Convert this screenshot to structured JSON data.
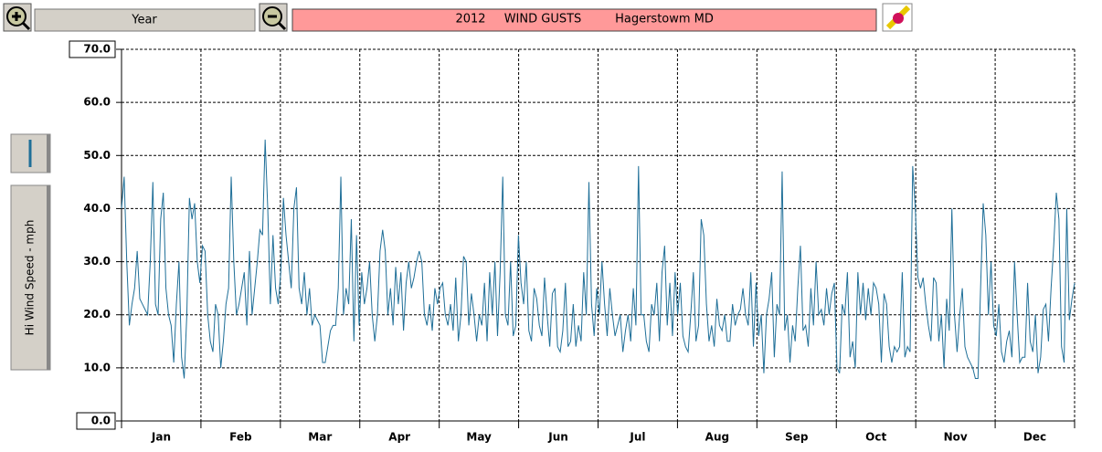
{
  "chart_data": {
    "type": "line",
    "range_button": "Year",
    "year": "2012",
    "title": "WIND GUSTS",
    "location": "Hagerstowm MD",
    "y_label": "Hi Wind Speed - mph",
    "x_labels": [
      "Jan",
      "Feb",
      "Mar",
      "Apr",
      "May",
      "Jun",
      "Jul",
      "Aug",
      "Sep",
      "Oct",
      "Nov",
      "Dec"
    ],
    "ylim": [
      0,
      70
    ],
    "yticks": [
      {
        "value": 0,
        "label": "0.0"
      },
      {
        "value": 10,
        "label": "10.0"
      },
      {
        "value": 20,
        "label": "20.0"
      },
      {
        "value": 30,
        "label": "30.0"
      },
      {
        "value": 40,
        "label": "40.0"
      },
      {
        "value": 50,
        "label": "50.0"
      },
      {
        "value": 60,
        "label": "60.0"
      },
      {
        "value": 70,
        "label": "70.0"
      }
    ],
    "grid": true,
    "color": "#1f6f98",
    "values": [
      40,
      46,
      30,
      18,
      22,
      25,
      32,
      23,
      22,
      21,
      20,
      30,
      45,
      22,
      20,
      38,
      43,
      25,
      20,
      18,
      11,
      22,
      30,
      12,
      8,
      20,
      42,
      38,
      41,
      30,
      26,
      33,
      32,
      20,
      15,
      13,
      22,
      20,
      10,
      15,
      22,
      25,
      46,
      30,
      20,
      22,
      25,
      28,
      18,
      32,
      20,
      25,
      30,
      36,
      35,
      53,
      40,
      22,
      35,
      25,
      22,
      28,
      42,
      35,
      30,
      25,
      40,
      44,
      25,
      22,
      28,
      20,
      25,
      18,
      20,
      19,
      18,
      11,
      11,
      14,
      17,
      18,
      18,
      25,
      46,
      20,
      25,
      22,
      38,
      15,
      35,
      18,
      28,
      22,
      25,
      30,
      20,
      15,
      20,
      32,
      36,
      32,
      20,
      25,
      18,
      29,
      22,
      28,
      17,
      26,
      30,
      25,
      27,
      30,
      32,
      30,
      20,
      18,
      22,
      17,
      25,
      22,
      25,
      26,
      20,
      18,
      22,
      17,
      27,
      15,
      20,
      31,
      30,
      18,
      24,
      20,
      15,
      20,
      18,
      26,
      15,
      28,
      20,
      30,
      16,
      28,
      46,
      20,
      18,
      30,
      16,
      18,
      35,
      26,
      22,
      30,
      17,
      15,
      25,
      23,
      18,
      16,
      27,
      20,
      14,
      24,
      25,
      14,
      13,
      17,
      26,
      14,
      15,
      22,
      14,
      18,
      15,
      28,
      20,
      45,
      22,
      16,
      25,
      20,
      30,
      22,
      16,
      25,
      20,
      16,
      18,
      20,
      13,
      17,
      20,
      15,
      25,
      18,
      48,
      20,
      20,
      15,
      13,
      22,
      20,
      26,
      15,
      28,
      33,
      18,
      26,
      16,
      28,
      20,
      26,
      16,
      14,
      13,
      20,
      28,
      15,
      18,
      38,
      35,
      22,
      15,
      18,
      14,
      23,
      18,
      17,
      20,
      15,
      15,
      22,
      18,
      20,
      21,
      25,
      20,
      18,
      28,
      14,
      26,
      16,
      20,
      9,
      20,
      23,
      28,
      12,
      22,
      20,
      47,
      17,
      20,
      11,
      18,
      15,
      25,
      33,
      17,
      18,
      14,
      25,
      18,
      30,
      20,
      21,
      18,
      25,
      20,
      24,
      26,
      10,
      9,
      22,
      20,
      28,
      12,
      15,
      10,
      28,
      20,
      26,
      19,
      25,
      20,
      26,
      25,
      22,
      11,
      24,
      22,
      14,
      11,
      14,
      13,
      14,
      28,
      12,
      14,
      13,
      48,
      40,
      27,
      25,
      27,
      22,
      18,
      15,
      27,
      26,
      15,
      20,
      10,
      23,
      17,
      40,
      20,
      13,
      20,
      25,
      14,
      12,
      11,
      10,
      8,
      8,
      25,
      41,
      35,
      20,
      30,
      18,
      16,
      22,
      13,
      11,
      15,
      17,
      12,
      30,
      20,
      11,
      12,
      12,
      26,
      15,
      13,
      20,
      9,
      12,
      21,
      22,
      15,
      25,
      33,
      43,
      38,
      14,
      11,
      40,
      19,
      23,
      26
    ]
  }
}
